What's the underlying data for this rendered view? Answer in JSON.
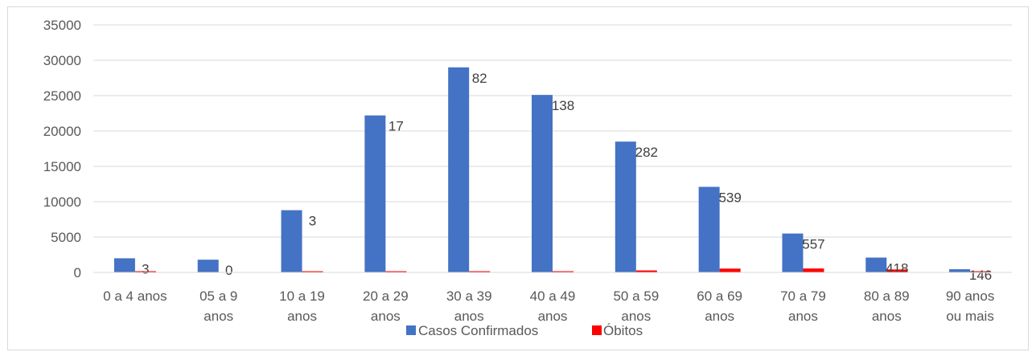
{
  "chart_data": {
    "type": "bar",
    "title": "",
    "xlabel": "",
    "ylabel": "",
    "ylim": [
      0,
      35000
    ],
    "yticks": [
      0,
      5000,
      10000,
      15000,
      20000,
      25000,
      30000,
      35000
    ],
    "grid": true,
    "legend_position": "bottom",
    "categories": [
      [
        "0 a 4 anos"
      ],
      [
        "05 a 9",
        "anos"
      ],
      [
        "10 a 19",
        "anos"
      ],
      [
        "20 a 29",
        "anos"
      ],
      [
        "30 a 39",
        "anos"
      ],
      [
        "40 a 49",
        "anos"
      ],
      [
        "50 a 59",
        "anos"
      ],
      [
        "60 a 69",
        "anos"
      ],
      [
        "70 a 79",
        "anos"
      ],
      [
        "80 a 89",
        "anos"
      ],
      [
        "90 anos",
        "ou mais"
      ]
    ],
    "series": [
      {
        "name": "Casos Confirmados",
        "color": "#4472c4",
        "values": [
          2000,
          1800,
          8800,
          22200,
          29000,
          25100,
          18500,
          12100,
          5500,
          2100,
          450
        ],
        "show_labels": false
      },
      {
        "name": "Óbitos",
        "color": "#ff0000",
        "values": [
          3,
          0,
          3,
          17,
          82,
          138,
          282,
          539,
          557,
          418,
          146
        ],
        "show_labels": true
      }
    ]
  }
}
